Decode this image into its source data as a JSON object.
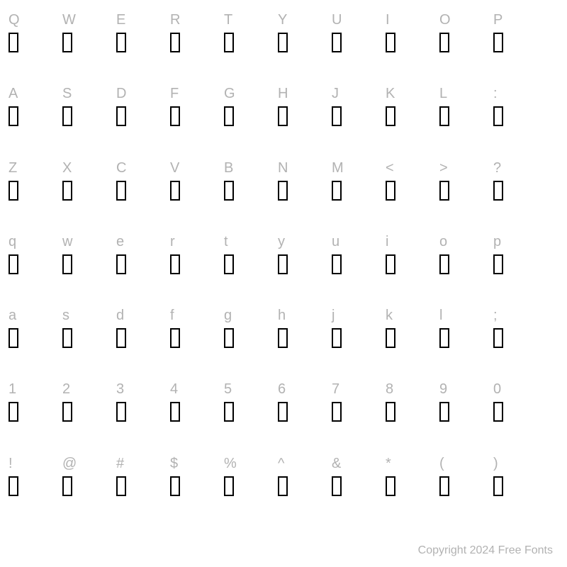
{
  "footer": "Copyright 2024 Free Fonts",
  "grid": {
    "cols": 10,
    "rows": 7,
    "char_color": "#b2b2b2",
    "char_fontsize": 20,
    "glyph_border_color": "#000000",
    "glyph_border_width": 2,
    "glyph_width": 14,
    "glyph_height": 28,
    "background": "#ffffff"
  },
  "rowsData": [
    [
      "Q",
      "W",
      "E",
      "R",
      "T",
      "Y",
      "U",
      "I",
      "O",
      "P"
    ],
    [
      "A",
      "S",
      "D",
      "F",
      "G",
      "H",
      "J",
      "K",
      "L",
      ":"
    ],
    [
      "Z",
      "X",
      "C",
      "V",
      "B",
      "N",
      "M",
      "<",
      ">",
      "?"
    ],
    [
      "q",
      "w",
      "e",
      "r",
      "t",
      "y",
      "u",
      "i",
      "o",
      "p"
    ],
    [
      "a",
      "s",
      "d",
      "f",
      "g",
      "h",
      "j",
      "k",
      "l",
      ";"
    ],
    [
      "1",
      "2",
      "3",
      "4",
      "5",
      "6",
      "7",
      "8",
      "9",
      "0"
    ],
    [
      "!",
      "@",
      "#",
      "$",
      "%",
      "^",
      "&",
      "*",
      "(",
      ")"
    ]
  ]
}
